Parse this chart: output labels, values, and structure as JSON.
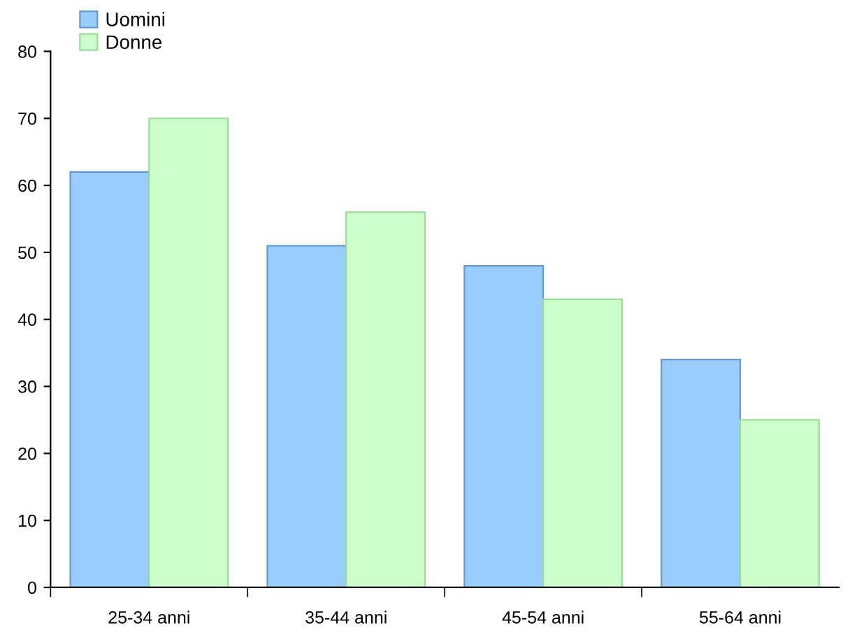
{
  "chart_data": {
    "type": "bar",
    "categories": [
      "25-34 anni",
      "35-44 anni",
      "45-54 anni",
      "55-64 anni"
    ],
    "series": [
      {
        "name": "Uomini",
        "color": "#99ccff",
        "values": [
          62,
          51,
          48,
          34
        ]
      },
      {
        "name": "Donne",
        "color": "#ccffcc",
        "values": [
          70,
          56,
          43,
          25
        ]
      }
    ],
    "ylim": [
      0,
      80
    ],
    "yticks": [
      0,
      10,
      20,
      30,
      40,
      50,
      60,
      70,
      80
    ],
    "grid": false,
    "legend": "top left"
  }
}
